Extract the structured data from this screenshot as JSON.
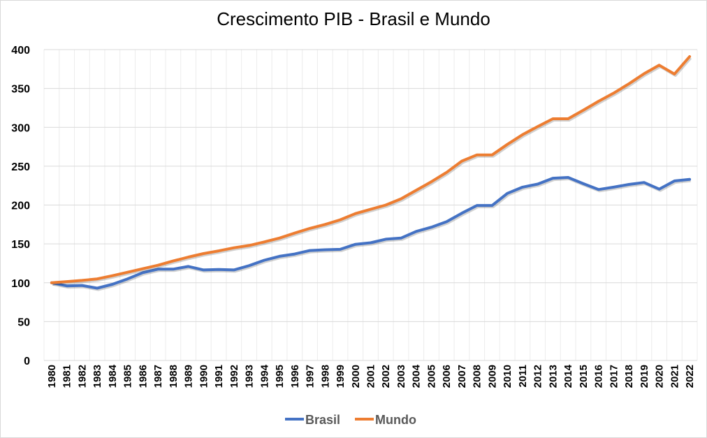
{
  "chart_data": {
    "type": "line",
    "title": "Crescimento PIB - Brasil e Mundo",
    "xlabel": "",
    "ylabel": "",
    "ylim": [
      0,
      400
    ],
    "yticks": [
      0,
      50,
      100,
      150,
      200,
      250,
      300,
      350,
      400
    ],
    "grid": true,
    "legend_position": "bottom",
    "categories": [
      "1980",
      "1981",
      "1982",
      "1983",
      "1984",
      "1985",
      "1986",
      "1987",
      "1988",
      "1989",
      "1990",
      "1991",
      "1992",
      "1993",
      "1994",
      "1995",
      "1996",
      "1997",
      "1998",
      "1999",
      "2000",
      "2001",
      "2002",
      "2003",
      "2004",
      "2005",
      "2006",
      "2007",
      "2008",
      "2009",
      "2010",
      "2011",
      "2012",
      "2013",
      "2014",
      "2015",
      "2016",
      "2017",
      "2018",
      "2019",
      "2020",
      "2021",
      "2022"
    ],
    "series": [
      {
        "name": "Brasil",
        "color": "#4472c4",
        "values": [
          100,
          96,
          96.5,
          93,
          98,
          105,
          113,
          117.5,
          117.5,
          121,
          116.5,
          117,
          116.5,
          122,
          129,
          134,
          137,
          141.5,
          142.5,
          143,
          149.5,
          151.5,
          156,
          157.5,
          166,
          171.5,
          178.5,
          189.5,
          199.5,
          199.5,
          215,
          223,
          227,
          234.5,
          235.5,
          227.5,
          220,
          223,
          226.5,
          229,
          220.5,
          231,
          233
        ]
      },
      {
        "name": "Mundo",
        "color": "#ed7d31",
        "values": [
          100,
          101.5,
          103,
          105,
          109,
          113.5,
          118,
          122.5,
          128,
          133,
          137.5,
          141,
          145,
          148,
          152.5,
          157.5,
          164,
          170,
          175,
          181,
          189,
          194.5,
          200,
          208,
          219,
          230,
          242,
          256.5,
          264.5,
          264.5,
          278,
          290.5,
          301,
          311,
          311,
          322,
          333.5,
          344,
          356,
          369,
          380,
          368.5,
          391
        ]
      }
    ]
  }
}
